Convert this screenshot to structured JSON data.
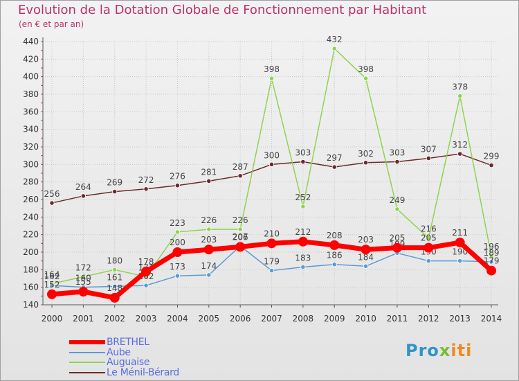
{
  "title": "Evolution de la Dotation Globale de Fonctionnement par Habitant",
  "subtitle": "(en € et par an)",
  "logo": {
    "part1": "Pro",
    "part2": "x",
    "part3": "iti"
  },
  "chart_data": {
    "type": "line",
    "x": [
      "2000",
      "2001",
      "2002",
      "2003",
      "2004",
      "2005",
      "2006",
      "2007",
      "2008",
      "2009",
      "2010",
      "2011",
      "2012",
      "2013",
      "2014"
    ],
    "ylim": [
      140,
      440
    ],
    "yticks": [
      140,
      160,
      180,
      200,
      220,
      240,
      260,
      280,
      300,
      320,
      340,
      360,
      380,
      400,
      420,
      440
    ],
    "grid": true,
    "legend_position": "bottom-left",
    "series": [
      {
        "name": "BRETHEL",
        "color": "#ff0000",
        "role": "main",
        "values": [
          152,
          155,
          148,
          178,
          200,
          203,
          206,
          210,
          212,
          208,
          203,
          205,
          205,
          211,
          179
        ]
      },
      {
        "name": "Aube",
        "color": "#5b9bd5",
        "role": "thin",
        "values": [
          162,
          160,
          161,
          162,
          173,
          174,
          207,
          179,
          183,
          186,
          184,
          199,
          190,
          190,
          189
        ],
        "labels": [
          "162",
          "160",
          "161",
          "162",
          "173",
          "174",
          "207",
          "179",
          "183",
          "186",
          "184",
          "199",
          "190",
          "190",
          "189"
        ]
      },
      {
        "name": "Auguaise",
        "color": "#8fd34e",
        "role": "thin",
        "values": [
          164,
          172,
          180,
          172,
          223,
          226,
          226,
          398,
          252,
          432,
          398,
          249,
          216,
          378,
          196
        ],
        "labels": [
          "164",
          "172",
          "180",
          "172",
          "223",
          "226",
          "226",
          "398",
          "252",
          "432",
          "398",
          "249",
          "216",
          "378",
          "196"
        ]
      },
      {
        "name": "Le Ménil-Bérard",
        "color": "#6b2a2a",
        "role": "thin",
        "values": [
          256,
          264,
          269,
          272,
          276,
          281,
          287,
          300,
          303,
          297,
          302,
          303,
          307,
          312,
          299
        ],
        "labels": [
          "256",
          "264",
          "269",
          "272",
          "276",
          "281",
          "287",
          "300",
          "303",
          "297",
          "302",
          "303",
          "307",
          "312",
          "299"
        ]
      }
    ],
    "main_labels": [
      "152",
      "155",
      "148",
      "178",
      "200",
      "203",
      "206",
      "210",
      "212",
      "208",
      "203",
      "205",
      "205",
      "211",
      "179"
    ]
  }
}
